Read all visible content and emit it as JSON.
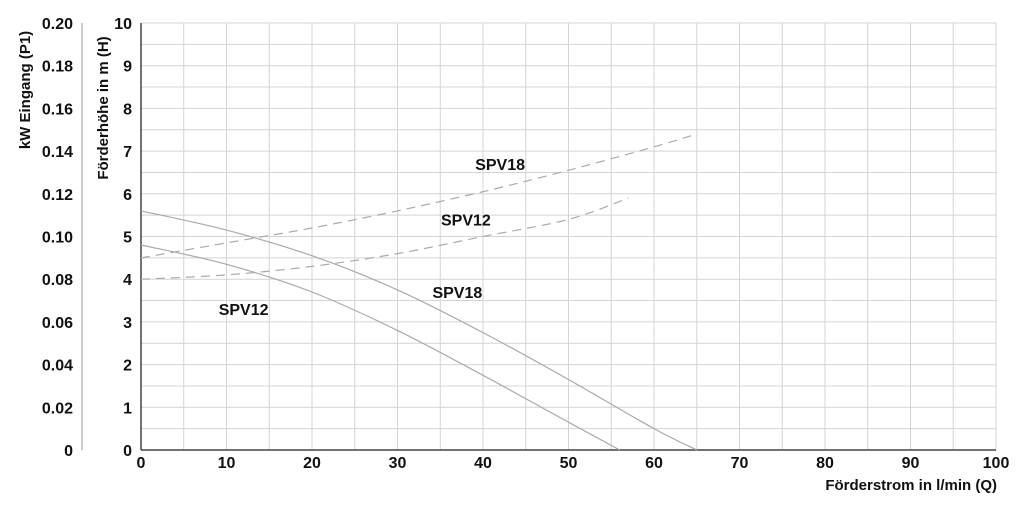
{
  "chart_data": {
    "type": "line",
    "title": "",
    "xlabel": "Förderstrom in l/min (Q)",
    "ylabel": "Förderhöhe in m (H)",
    "ylabel2": "kW Eingang (P1)",
    "xlim": [
      0,
      100
    ],
    "ylim": [
      0,
      10
    ],
    "y2lim": [
      0,
      0.2
    ],
    "grid": true,
    "x_ticks": [
      "0",
      "10",
      "20",
      "30",
      "40",
      "50",
      "60",
      "70",
      "80",
      "90",
      "100"
    ],
    "y_ticks": [
      "0",
      "1",
      "2",
      "3",
      "4",
      "5",
      "6",
      "7",
      "8",
      "9",
      "10"
    ],
    "y2_ticks": [
      "0",
      "0.02",
      "0.04",
      "0.06",
      "0.08",
      "0.10",
      "0.12",
      "0.14",
      "0.16",
      "0.18",
      "0.20"
    ],
    "series": [
      {
        "name": "SPV12",
        "kind": "head",
        "axis": "left",
        "style": "solid",
        "color": "#aaaaaa",
        "label_at": [
          12,
          3.3
        ],
        "points": [
          [
            0,
            4.8
          ],
          [
            10,
            4.35
          ],
          [
            20,
            3.7
          ],
          [
            30,
            2.8
          ],
          [
            40,
            1.75
          ],
          [
            50,
            0.65
          ],
          [
            56,
            0
          ]
        ]
      },
      {
        "name": "SPV18",
        "kind": "head",
        "axis": "left",
        "style": "solid",
        "color": "#aaaaaa",
        "label_at": [
          37,
          3.7
        ],
        "points": [
          [
            0,
            5.6
          ],
          [
            10,
            5.15
          ],
          [
            20,
            4.55
          ],
          [
            30,
            3.75
          ],
          [
            40,
            2.75
          ],
          [
            50,
            1.65
          ],
          [
            60,
            0.5
          ],
          [
            65,
            0
          ]
        ]
      },
      {
        "name": "SPV12",
        "kind": "power",
        "axis": "right",
        "style": "dashed",
        "color": "#aaaaaa",
        "label_at": [
          38,
          5.4
        ],
        "points": [
          [
            0,
            0.08
          ],
          [
            10,
            0.082
          ],
          [
            20,
            0.086
          ],
          [
            30,
            0.092
          ],
          [
            40,
            0.1
          ],
          [
            50,
            0.108
          ],
          [
            57,
            0.118
          ]
        ]
      },
      {
        "name": "SPV18",
        "kind": "power",
        "axis": "right",
        "style": "dashed",
        "color": "#aaaaaa",
        "label_at": [
          42,
          6.7
        ],
        "points": [
          [
            0,
            0.09
          ],
          [
            10,
            0.097
          ],
          [
            20,
            0.104
          ],
          [
            30,
            0.112
          ],
          [
            40,
            0.121
          ],
          [
            50,
            0.131
          ],
          [
            60,
            0.142
          ],
          [
            65,
            0.148
          ]
        ]
      }
    ]
  }
}
